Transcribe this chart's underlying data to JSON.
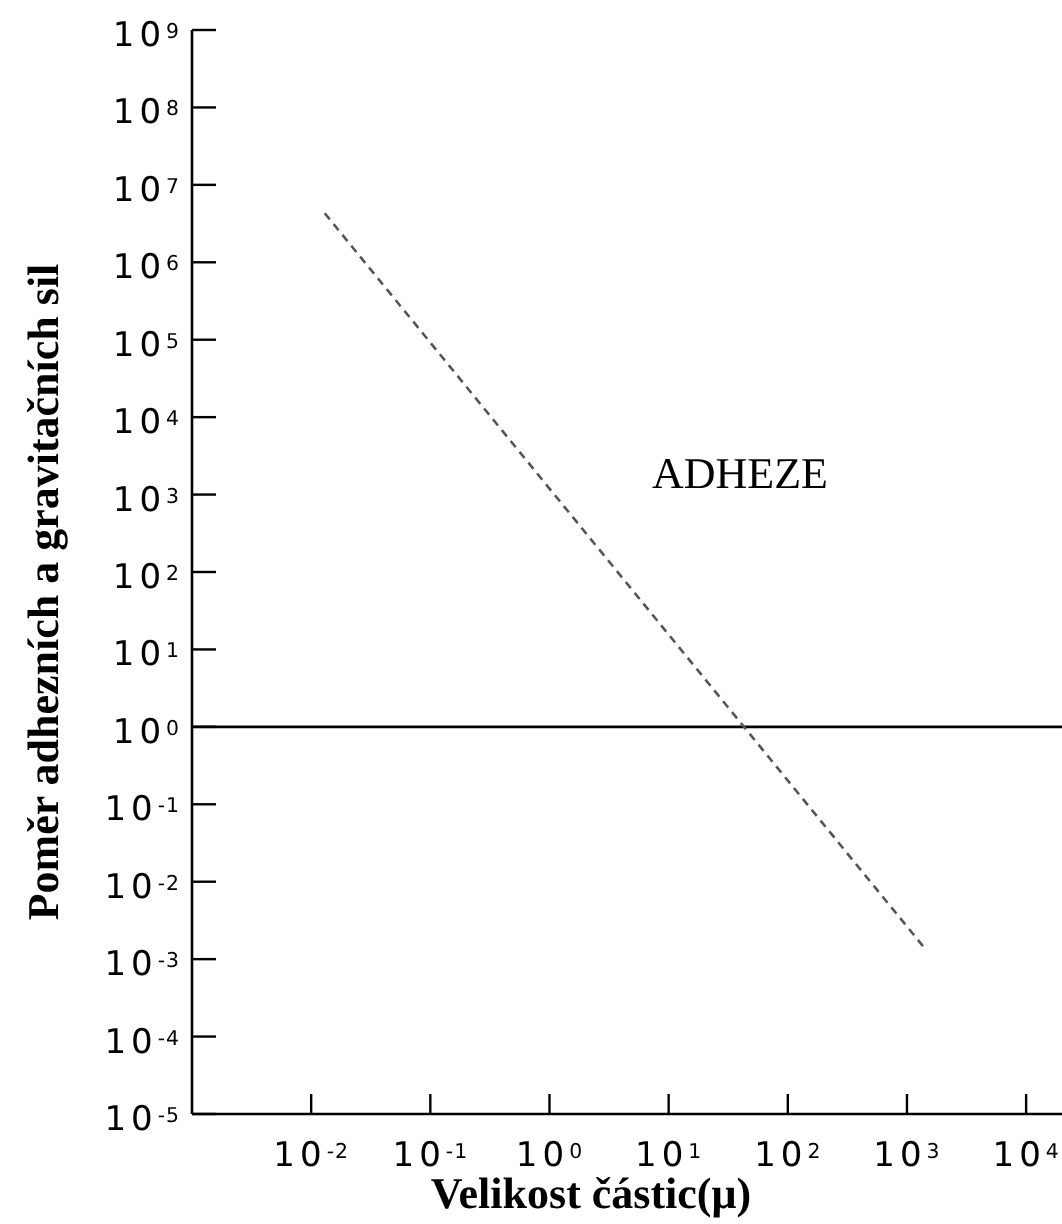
{
  "chart_data": {
    "type": "line",
    "xlabel": "Velikost částic(μ)",
    "ylabel": "Poměr adhezních a gravitačních sil",
    "log": "xy",
    "xlim": [
      0.001,
      20000
    ],
    "xticks": [
      {
        "value": 0.01,
        "label": "10$^{-2}$"
      },
      {
        "value": 0.1,
        "label": "10$^{-1}$"
      },
      {
        "value": 1,
        "label": "10$^{0}$"
      },
      {
        "value": 10,
        "label": "10$^{1}$"
      },
      {
        "value": 100,
        "label": "10$^{2}$"
      },
      {
        "value": 1000,
        "label": "10$^{3}$"
      },
      {
        "value": 10000,
        "label": "10$^{4}$"
      }
    ],
    "ylim": [
      1e-05,
      1000000000.0
    ],
    "yticks": [
      {
        "value": 1e-05,
        "label": "10$^{-5}$"
      },
      {
        "value": 0.0001,
        "label": "10$^{-4}$"
      },
      {
        "value": 0.001,
        "label": "10$^{-3}$"
      },
      {
        "value": 0.01,
        "label": "10$^{-2}$"
      },
      {
        "value": 0.1,
        "label": "10$^{-1}$"
      },
      {
        "value": 1,
        "label": "10$^{0}$"
      },
      {
        "value": 10,
        "label": "10$^{1}$"
      },
      {
        "value": 100,
        "label": "10$^{2}$"
      },
      {
        "value": 1000,
        "label": "10$^{3}$"
      },
      {
        "value": 10000.0,
        "label": "10$^{4}$"
      },
      {
        "value": 100000.0,
        "label": "10$^{5}$"
      },
      {
        "value": 1000000.0,
        "label": "10$^{6}$"
      },
      {
        "value": 10000000.0,
        "label": "10$^{7}$"
      },
      {
        "value": 100000000.0,
        "label": "10$^{8}$"
      },
      {
        "value": 1000000000.0,
        "label": "10$^{9}$"
      }
    ],
    "x": [
      0.013,
      1400
    ],
    "series": [
      {
        "color": "#555555",
        "values": [
          4300000,
          0.0014
        ]
      }
    ],
    "marker": "none",
    "line_style": "dashed",
    "ref_lines": [
      {
        "axis": "y",
        "value": 1,
        "color": "#000000",
        "line_style": "solid"
      }
    ],
    "annotations": [
      "ADHEZE"
    ]
  }
}
